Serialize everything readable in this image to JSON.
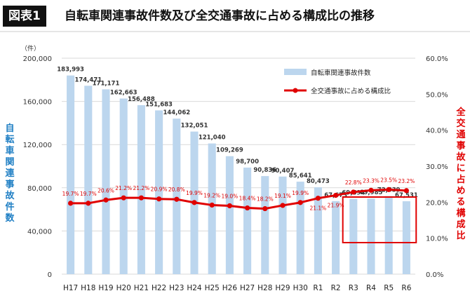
{
  "header": {
    "badge": "図表1",
    "title": "自転車関連事故件数及び全交通事故に占める構成比の推移"
  },
  "colors": {
    "bar": "#bcd6ee",
    "line": "#e00000",
    "left_axis_label": "#1f7fc4",
    "right_axis_label": "#e00000",
    "highlight_box": "#e00000"
  },
  "chart_data": {
    "type": "bar+line",
    "categories": [
      "H17",
      "H18",
      "H19",
      "H20",
      "H21",
      "H22",
      "H23",
      "H24",
      "H25",
      "H26",
      "H27",
      "H28",
      "H29",
      "H30",
      "R1",
      "R2",
      "R3",
      "R4",
      "R5",
      "R6"
    ],
    "series": [
      {
        "name": "自転車関連事故件数",
        "type": "bar",
        "axis": "left",
        "values": [
          183993,
          174471,
          171171,
          162663,
          156488,
          151683,
          144062,
          132051,
          121040,
          109269,
          98700,
          90836,
          90407,
          85641,
          80473,
          67673,
          69694,
          69985,
          72339,
          67531
        ],
        "labels": [
          "183,993",
          "174,471",
          "171,171",
          "162,663",
          "156,488",
          "151,683",
          "144,062",
          "132,051",
          "121,040",
          "109,269",
          "98,700",
          "90,836",
          "90,407",
          "85,641",
          "80,473",
          "67,673",
          "69,694",
          "69,985",
          "72,339",
          "67,531"
        ]
      },
      {
        "name": "全交通事故に占める構成比",
        "type": "line",
        "axis": "right",
        "values": [
          19.7,
          19.7,
          20.6,
          21.2,
          21.2,
          20.9,
          20.8,
          19.9,
          19.2,
          19.0,
          18.4,
          18.2,
          19.1,
          19.9,
          21.1,
          21.9,
          22.8,
          23.3,
          23.5,
          23.2
        ],
        "labels": [
          "19.7%",
          "19.7%",
          "20.6%",
          "21.2%",
          "21.2%",
          "20.9%",
          "20.8%",
          "19.9%",
          "19.2%",
          "19.0%",
          "18.4%",
          "18.2%",
          "19.1%",
          "19.9%",
          "21.1%",
          "21.9%",
          "22.8%",
          "23.3%",
          "23.5%",
          "23.2%"
        ]
      }
    ],
    "left_axis": {
      "unit": "（件）",
      "label": "自転車関連事故件数",
      "ylim": [
        0,
        200000
      ],
      "ticks": [
        "0",
        "40,000",
        "80,000",
        "120,000",
        "160,000",
        "200,000"
      ],
      "tick_values": [
        0,
        40000,
        80000,
        120000,
        160000,
        200000
      ]
    },
    "right_axis": {
      "label": "全交通事故に占める構成比",
      "ylim": [
        0,
        60
      ],
      "ticks": [
        "0.0%",
        "10.0%",
        "20.0%",
        "30.0%",
        "40.0%",
        "50.0%",
        "60.0%"
      ],
      "tick_values": [
        0,
        10,
        20,
        30,
        40,
        50,
        60
      ]
    },
    "legend_position": "top-right",
    "grid": true,
    "highlight": {
      "from": "R3",
      "to": "R6"
    }
  }
}
